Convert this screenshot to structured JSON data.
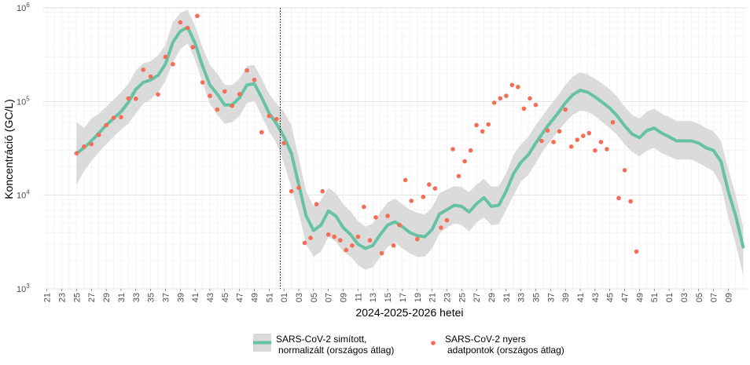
{
  "chart_data": {
    "type": "line",
    "xlabel": "2024-2025-2026 hetei",
    "ylabel": "Koncentráció (GC/L)",
    "y_scale": "log",
    "ylim": [
      1000,
      1000000
    ],
    "y_ticks": [
      {
        "value": 1000,
        "base": "10",
        "exp": "3"
      },
      {
        "value": 10000,
        "base": "10",
        "exp": "4"
      },
      {
        "value": 100000,
        "base": "10",
        "exp": "5"
      },
      {
        "value": 1000000,
        "base": "10",
        "exp": "6"
      }
    ],
    "x_tick_labels": [
      "21",
      "23",
      "25",
      "27",
      "29",
      "31",
      "33",
      "35",
      "37",
      "39",
      "41",
      "43",
      "45",
      "47",
      "49",
      "51",
      "01",
      "03",
      "05",
      "07",
      "09",
      "11",
      "13",
      "15",
      "17",
      "19",
      "21",
      "23",
      "25",
      "27",
      "29",
      "31",
      "33",
      "35",
      "37",
      "39",
      "41",
      "43",
      "45",
      "47",
      "49",
      "51",
      "01",
      "03",
      "05",
      "07",
      "09"
    ],
    "year_boundary_after_index": 31.5,
    "grid": true,
    "legend_position": "bottom",
    "colors": {
      "smoothed": "#66c2a5",
      "band": "#d9d9d9",
      "raw": "#f46d54"
    },
    "series": [
      {
        "name": "SARS-CoV-2 simított, normalizált (országos átlag)",
        "kind": "smoothed",
        "x": [
          4,
          5,
          6,
          7,
          8,
          9,
          10,
          11,
          12,
          13,
          14,
          15,
          16,
          17,
          18,
          19,
          20,
          21,
          22,
          23,
          24,
          25,
          26,
          27,
          28,
          29,
          30,
          31,
          32,
          33,
          34,
          35,
          36,
          37,
          38,
          39,
          40,
          41,
          42,
          43,
          44,
          45,
          46,
          47,
          48,
          49,
          50,
          51,
          52,
          53,
          54,
          55,
          56,
          57,
          58,
          59,
          60,
          61,
          62,
          63,
          64,
          65,
          66,
          67,
          68,
          69,
          70,
          71,
          72,
          73,
          74,
          75,
          76,
          77,
          78,
          79,
          80,
          81,
          82,
          83,
          84,
          85,
          86,
          87,
          88,
          89,
          90,
          91,
          92,
          93,
          94
        ],
        "values": [
          28000,
          32000,
          38000,
          46000,
          56000,
          66000,
          78000,
          98000,
          135000,
          160000,
          170000,
          190000,
          250000,
          430000,
          560000,
          620000,
          420000,
          240000,
          150000,
          120000,
          92000,
          92000,
          110000,
          150000,
          155000,
          110000,
          75000,
          58000,
          42000,
          28000,
          13000,
          6000,
          4200,
          4800,
          6800,
          6000,
          4500,
          3800,
          3000,
          2700,
          2900,
          3800,
          4800,
          5200,
          4600,
          4000,
          3700,
          3600,
          4300,
          6300,
          7000,
          7800,
          7600,
          6600,
          8100,
          9400,
          7600,
          7800,
          11000,
          17000,
          22500,
          27000,
          36000,
          47000,
          60000,
          75000,
          97000,
          118000,
          132000,
          126000,
          112000,
          98000,
          85000,
          70000,
          55000,
          45000,
          41000,
          49000,
          52000,
          46000,
          42000,
          38000,
          38000,
          38000,
          36000,
          32000,
          30000,
          23000,
          11000,
          6000,
          2800
        ],
        "lower": [
          13000,
          18000,
          23000,
          29000,
          35000,
          42000,
          50000,
          58000,
          75000,
          95000,
          105000,
          125000,
          165000,
          260000,
          360000,
          420000,
          280000,
          160000,
          95000,
          72000,
          58000,
          60000,
          70000,
          96000,
          102000,
          70000,
          48000,
          36000,
          22000,
          12000,
          6500,
          3000,
          2200,
          2500,
          3600,
          3200,
          2500,
          2200,
          1800,
          1600,
          1700,
          2200,
          2800,
          3100,
          2700,
          2400,
          2200,
          2200,
          2700,
          3900,
          4500,
          5000,
          4800,
          4100,
          5100,
          5800,
          4800,
          4900,
          7000,
          10000,
          14000,
          16500,
          22000,
          30000,
          38000,
          48000,
          60000,
          72000,
          80000,
          78000,
          70000,
          60000,
          52000,
          44000,
          35000,
          29000,
          26000,
          30000,
          32000,
          28000,
          26000,
          24000,
          24000,
          24000,
          22000,
          20000,
          18000,
          13000,
          5800,
          3000,
          1400
        ],
        "upper": [
          60000,
          52000,
          66000,
          74000,
          88000,
          105000,
          125000,
          155000,
          215000,
          255000,
          270000,
          310000,
          400000,
          700000,
          880000,
          960000,
          640000,
          380000,
          245000,
          200000,
          150000,
          150000,
          175000,
          240000,
          245000,
          175000,
          120000,
          95000,
          78000,
          56000,
          25000,
          11000,
          7600,
          8800,
          12000,
          10500,
          8000,
          6700,
          5300,
          4600,
          5000,
          6600,
          8400,
          9200,
          8000,
          7000,
          6500,
          6200,
          7400,
          10500,
          11500,
          12500,
          12200,
          10800,
          13000,
          15000,
          12300,
          12500,
          17000,
          27000,
          35000,
          42000,
          56000,
          72000,
          92000,
          116000,
          150000,
          185000,
          205000,
          195000,
          175000,
          155000,
          135000,
          112000,
          88000,
          72000,
          66000,
          78000,
          84000,
          74000,
          68000,
          62000,
          62000,
          62000,
          58000,
          52000,
          48000,
          38000,
          19000,
          10000,
          4500
        ]
      },
      {
        "name": "SARS-CoV-2 nyers adatpontok (országos átlag)",
        "kind": "raw",
        "points": [
          [
            4,
            28000
          ],
          [
            5,
            33000
          ],
          [
            6,
            35000
          ],
          [
            7,
            44000
          ],
          [
            8,
            56000
          ],
          [
            9,
            67000
          ],
          [
            10,
            68000
          ],
          [
            11,
            108000
          ],
          [
            12,
            107000
          ],
          [
            13,
            218000
          ],
          [
            14,
            185000
          ],
          [
            15,
            119000
          ],
          [
            16,
            300000
          ],
          [
            17,
            250000
          ],
          [
            18,
            700000
          ],
          [
            19,
            610000
          ],
          [
            19.7,
            380000
          ],
          [
            20.3,
            820000
          ],
          [
            21,
            160000
          ],
          [
            22,
            115000
          ],
          [
            23,
            82000
          ],
          [
            24,
            128000
          ],
          [
            25,
            90000
          ],
          [
            26,
            120000
          ],
          [
            27,
            215000
          ],
          [
            28,
            170000
          ],
          [
            29,
            47000
          ],
          [
            30,
            70000
          ],
          [
            31,
            65000
          ],
          [
            32,
            36000
          ],
          [
            33,
            11000
          ],
          [
            34,
            12000
          ],
          [
            34.8,
            3100
          ],
          [
            35.6,
            3500
          ],
          [
            36.4,
            8000
          ],
          [
            37.2,
            11000
          ],
          [
            38,
            3800
          ],
          [
            38.8,
            3600
          ],
          [
            39.6,
            3300
          ],
          [
            40.4,
            2600
          ],
          [
            41.2,
            2900
          ],
          [
            42,
            3600
          ],
          [
            42.8,
            7500
          ],
          [
            43.6,
            3300
          ],
          [
            44.4,
            5800
          ],
          [
            45.2,
            2400
          ],
          [
            46,
            6000
          ],
          [
            46.8,
            2900
          ],
          [
            47.6,
            4800
          ],
          [
            48.4,
            14500
          ],
          [
            49.2,
            8700
          ],
          [
            50,
            3400
          ],
          [
            50.8,
            9600
          ],
          [
            51.6,
            13000
          ],
          [
            52.4,
            11800
          ],
          [
            53.2,
            4500
          ],
          [
            54,
            5400
          ],
          [
            54.8,
            31000
          ],
          [
            55.6,
            16000
          ],
          [
            56.4,
            23000
          ],
          [
            57.2,
            30000
          ],
          [
            58,
            56000
          ],
          [
            58.8,
            48000
          ],
          [
            59.6,
            57000
          ],
          [
            60.4,
            97000
          ],
          [
            61.2,
            108000
          ],
          [
            62,
            115000
          ],
          [
            62.8,
            150000
          ],
          [
            63.6,
            143000
          ],
          [
            64.4,
            84000
          ],
          [
            65.2,
            108000
          ],
          [
            66,
            92000
          ],
          [
            66.8,
            38000
          ],
          [
            67.6,
            49000
          ],
          [
            68.4,
            37000
          ],
          [
            69.2,
            48000
          ],
          [
            70,
            82000
          ],
          [
            70.8,
            33000
          ],
          [
            71.6,
            39000
          ],
          [
            72.4,
            43000
          ],
          [
            73.2,
            46000
          ],
          [
            74,
            30000
          ],
          [
            74.8,
            37000
          ],
          [
            75.6,
            31000
          ],
          [
            76.4,
            60000
          ],
          [
            77.2,
            9300
          ],
          [
            78,
            18500
          ],
          [
            78.8,
            8600
          ],
          [
            79.6,
            2500
          ]
        ]
      }
    ]
  },
  "legend": {
    "smoothed_label_line1": "SARS-CoV-2 simított,",
    "smoothed_label_line2": "normalizált (országos átlag)",
    "raw_label_line1": "SARS-CoV-2 nyers",
    "raw_label_line2": "adatpontok (országos átlag)"
  }
}
